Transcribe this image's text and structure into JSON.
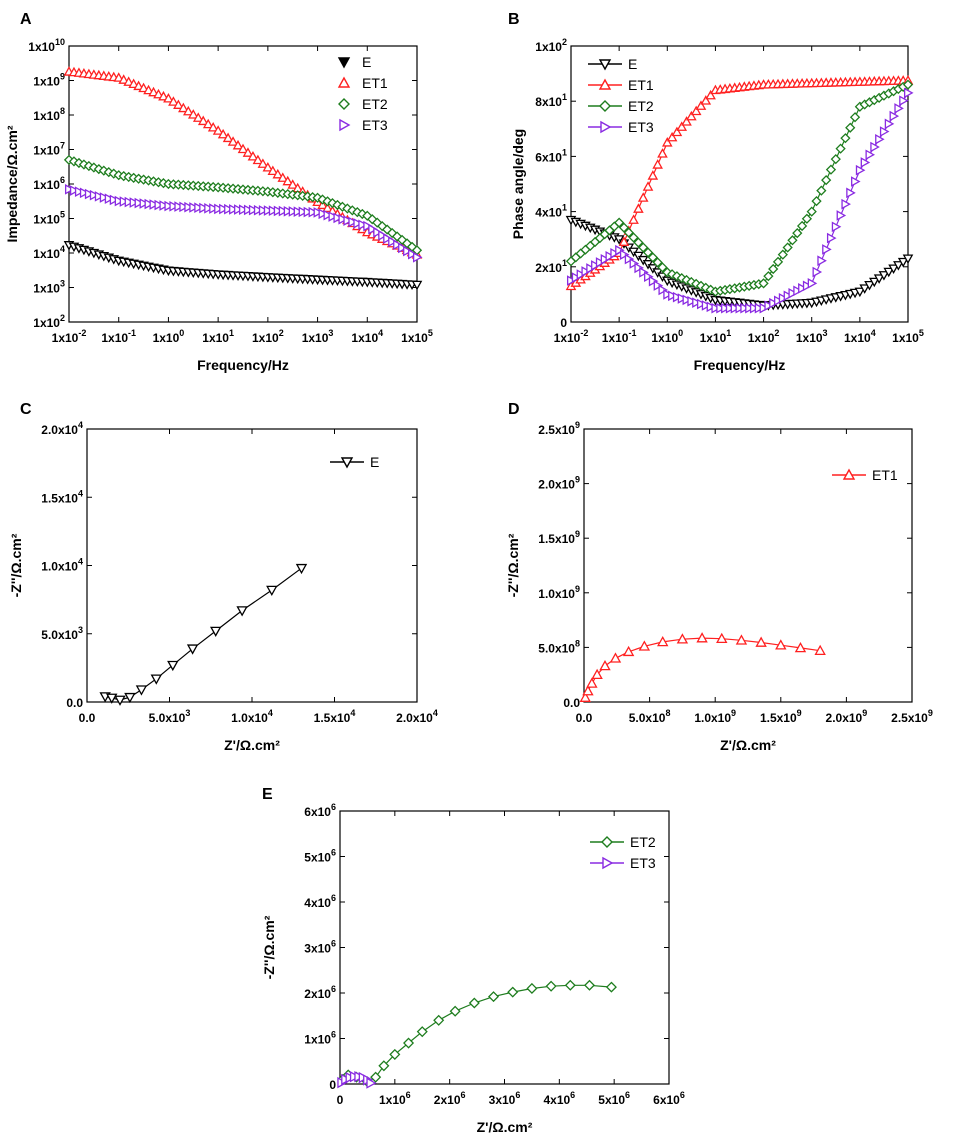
{
  "figure": {
    "colors": {
      "E": "#000000",
      "ET1": "#ff2020",
      "ET2": "#1e7d1e",
      "ET3": "#8a2be2"
    }
  },
  "chart_data": [
    {
      "id": "A",
      "panel_label": "A",
      "type": "scatter",
      "scale": "log-log",
      "xlabel": "Frequency/Hz",
      "ylabel": "Impedance/Ω.cm²",
      "xlim": [
        0.01,
        100000
      ],
      "ylim": [
        100,
        10000000000
      ],
      "xticks": [
        {
          "b": "1x10",
          "e": "-2"
        },
        {
          "b": "1x10",
          "e": "-1"
        },
        {
          "b": "1x10",
          "e": "0"
        },
        {
          "b": "1x10",
          "e": "1"
        },
        {
          "b": "1x10",
          "e": "2"
        },
        {
          "b": "1x10",
          "e": "3"
        },
        {
          "b": "1x10",
          "e": "4"
        },
        {
          "b": "1x10",
          "e": "5"
        }
      ],
      "yticks": [
        {
          "b": "1x10",
          "e": "2"
        },
        {
          "b": "1x10",
          "e": "3"
        },
        {
          "b": "1x10",
          "e": "4"
        },
        {
          "b": "1x10",
          "e": "5"
        },
        {
          "b": "1x10",
          "e": "6"
        },
        {
          "b": "1x10",
          "e": "7"
        },
        {
          "b": "1x10",
          "e": "8"
        },
        {
          "b": "1x10",
          "e": "9"
        },
        {
          "b": "1x10",
          "e": "10"
        }
      ],
      "legend": {
        "position": "top-right",
        "style": "marker-only"
      },
      "series": [
        {
          "name": "E",
          "marker": "triangle-down",
          "x": [
            0.01,
            0.1,
            1,
            10,
            100,
            1000,
            10000,
            100000
          ],
          "y": [
            17000,
            6000,
            3100,
            2400,
            2000,
            1700,
            1450,
            1200
          ]
        },
        {
          "name": "ET1",
          "marker": "triangle-up",
          "x": [
            0.01,
            0.1,
            1,
            10,
            100,
            1000,
            10000,
            100000
          ],
          "y": [
            1800000000,
            1200000000,
            300000000,
            35000000,
            3000000,
            300000,
            40000,
            9000
          ]
        },
        {
          "name": "ET2",
          "marker": "diamond",
          "x": [
            0.01,
            0.1,
            1,
            10,
            100,
            1000,
            10000,
            100000
          ],
          "y": [
            5000000,
            1800000,
            1000000,
            800000,
            600000,
            400000,
            120000,
            12000
          ]
        },
        {
          "name": "ET3",
          "marker": "triangle-right",
          "x": [
            0.01,
            0.1,
            1,
            10,
            100,
            1000,
            10000,
            100000
          ],
          "y": [
            700000,
            320000,
            230000,
            190000,
            170000,
            150000,
            60000,
            7500
          ]
        }
      ]
    },
    {
      "id": "B",
      "panel_label": "B",
      "type": "scatter",
      "scale": "log-x",
      "xlabel": "Frequency/Hz",
      "ylabel": "Phase angle/deg",
      "xlim": [
        0.01,
        100000
      ],
      "ylim": [
        0,
        100
      ],
      "xticks": [
        {
          "b": "1x10",
          "e": "-2"
        },
        {
          "b": "1x10",
          "e": "-1"
        },
        {
          "b": "1x10",
          "e": "0"
        },
        {
          "b": "1x10",
          "e": "1"
        },
        {
          "b": "1x10",
          "e": "2"
        },
        {
          "b": "1x10",
          "e": "3"
        },
        {
          "b": "1x10",
          "e": "4"
        },
        {
          "b": "1x10",
          "e": "5"
        }
      ],
      "yticks": [
        {
          "v": 0,
          "b": "0",
          "e": ""
        },
        {
          "v": 20,
          "b": "2x10",
          "e": "1"
        },
        {
          "v": 40,
          "b": "4x10",
          "e": "1"
        },
        {
          "v": 60,
          "b": "6x10",
          "e": "1"
        },
        {
          "v": 80,
          "b": "8x10",
          "e": "1"
        },
        {
          "v": 100,
          "b": "1x10",
          "e": "2"
        }
      ],
      "legend": {
        "position": "top-left",
        "style": "line-marker"
      },
      "series": [
        {
          "name": "E",
          "marker": "triangle-down",
          "x": [
            0.01,
            0.1,
            1,
            10,
            100,
            1000,
            10000,
            100000
          ],
          "y": [
            37,
            30,
            15,
            8,
            6,
            7,
            11,
            23
          ]
        },
        {
          "name": "ET1",
          "marker": "triangle-up",
          "x": [
            0.01,
            0.1,
            1,
            10,
            100,
            1000,
            10000,
            100000
          ],
          "y": [
            13,
            25,
            65,
            84,
            86,
            86.5,
            87,
            87.5
          ]
        },
        {
          "name": "ET2",
          "marker": "diamond",
          "x": [
            0.01,
            0.1,
            1,
            10,
            100,
            1000,
            10000,
            100000
          ],
          "y": [
            22,
            36,
            18,
            11,
            14,
            40,
            78,
            86
          ]
        },
        {
          "name": "ET3",
          "marker": "triangle-right",
          "x": [
            0.01,
            0.1,
            1,
            10,
            100,
            1000,
            10000,
            100000
          ],
          "y": [
            15,
            26,
            10,
            5,
            5,
            14,
            55,
            83
          ]
        }
      ]
    },
    {
      "id": "C",
      "panel_label": "C",
      "type": "scatter",
      "scale": "linear",
      "xlabel": "Z'/Ω.cm²",
      "ylabel": "-Z''/Ω.cm²",
      "xlim": [
        0,
        20000
      ],
      "ylim": [
        0,
        20000
      ],
      "xticks": [
        {
          "v": 0,
          "b": "0.0",
          "e": ""
        },
        {
          "v": 5000,
          "b": "5.0x10",
          "e": "3"
        },
        {
          "v": 10000,
          "b": "1.0x10",
          "e": "4"
        },
        {
          "v": 15000,
          "b": "1.5x10",
          "e": "4"
        },
        {
          "v": 20000,
          "b": "2.0x10",
          "e": "4"
        }
      ],
      "yticks": [
        {
          "v": 0,
          "b": "0.0",
          "e": ""
        },
        {
          "v": 5000,
          "b": "5.0x10",
          "e": "3"
        },
        {
          "v": 10000,
          "b": "1.0x10",
          "e": "4"
        },
        {
          "v": 15000,
          "b": "1.5x10",
          "e": "4"
        },
        {
          "v": 20000,
          "b": "2.0x10",
          "e": "4"
        }
      ],
      "legend": {
        "position": "top-right",
        "style": "line-marker"
      },
      "series": [
        {
          "name": "E",
          "marker": "triangle-down",
          "x": [
            1100,
            1500,
            2000,
            2600,
            3300,
            4200,
            5200,
            6400,
            7800,
            9400,
            11200,
            13000
          ],
          "y": [
            400,
            300,
            150,
            350,
            900,
            1700,
            2700,
            3900,
            5200,
            6700,
            8200,
            9800
          ]
        }
      ]
    },
    {
      "id": "D",
      "panel_label": "D",
      "type": "scatter",
      "scale": "linear",
      "xlabel": "Z'/Ω.cm²",
      "ylabel": "-Z''/Ω.cm²",
      "xlim": [
        0,
        2500000000
      ],
      "ylim": [
        0,
        2500000000
      ],
      "xticks": [
        {
          "v": 0,
          "b": "0.0",
          "e": ""
        },
        {
          "v": 500000000,
          "b": "5.0x10",
          "e": "8"
        },
        {
          "v": 1000000000,
          "b": "1.0x10",
          "e": "9"
        },
        {
          "v": 1500000000,
          "b": "1.5x10",
          "e": "9"
        },
        {
          "v": 2000000000,
          "b": "2.0x10",
          "e": "9"
        },
        {
          "v": 2500000000,
          "b": "2.5x10",
          "e": "9"
        }
      ],
      "yticks": [
        {
          "v": 0,
          "b": "0.0",
          "e": ""
        },
        {
          "v": 500000000,
          "b": "5.0x10",
          "e": "8"
        },
        {
          "v": 1000000000,
          "b": "1.0x10",
          "e": "9"
        },
        {
          "v": 1500000000,
          "b": "1.5x10",
          "e": "9"
        },
        {
          "v": 2000000000,
          "b": "2.0x10",
          "e": "9"
        },
        {
          "v": 2500000000,
          "b": "2.5x10",
          "e": "9"
        }
      ],
      "legend": {
        "position": "top-right",
        "style": "line-marker"
      },
      "series": [
        {
          "name": "ET1",
          "marker": "triangle-up",
          "x": [
            10000000,
            30000000,
            60000000,
            100000000,
            160000000,
            240000000,
            340000000,
            460000000,
            600000000,
            750000000,
            900000000,
            1050000000,
            1200000000,
            1350000000,
            1500000000,
            1650000000,
            1800000000
          ],
          "y": [
            40000000,
            100000000,
            170000000,
            250000000,
            330000000,
            400000000,
            460000000,
            510000000,
            550000000,
            575000000,
            585000000,
            580000000,
            565000000,
            545000000,
            520000000,
            495000000,
            470000000
          ]
        }
      ]
    },
    {
      "id": "E",
      "panel_label": "E",
      "type": "scatter",
      "scale": "linear",
      "xlabel": "Z'/Ω.cm²",
      "ylabel": "-Z''/Ω.cm²",
      "xlim": [
        0,
        6000000
      ],
      "ylim": [
        0,
        6000000
      ],
      "xticks": [
        {
          "v": 0,
          "b": "0",
          "e": ""
        },
        {
          "v": 1000000,
          "b": "1x10",
          "e": "6"
        },
        {
          "v": 2000000,
          "b": "2x10",
          "e": "6"
        },
        {
          "v": 3000000,
          "b": "3x10",
          "e": "6"
        },
        {
          "v": 4000000,
          "b": "4x10",
          "e": "6"
        },
        {
          "v": 5000000,
          "b": "5x10",
          "e": "6"
        },
        {
          "v": 6000000,
          "b": "6x10",
          "e": "6"
        }
      ],
      "yticks": [
        {
          "v": 0,
          "b": "0",
          "e": ""
        },
        {
          "v": 1000000,
          "b": "1x10",
          "e": "6"
        },
        {
          "v": 2000000,
          "b": "2x10",
          "e": "6"
        },
        {
          "v": 3000000,
          "b": "3x10",
          "e": "6"
        },
        {
          "v": 4000000,
          "b": "4x10",
          "e": "6"
        },
        {
          "v": 5000000,
          "b": "5x10",
          "e": "6"
        },
        {
          "v": 6000000,
          "b": "6x10",
          "e": "6"
        }
      ],
      "legend": {
        "position": "top-right",
        "style": "line-marker"
      },
      "series": [
        {
          "name": "ET2",
          "marker": "diamond",
          "x": [
            50000,
            150000,
            300000,
            500000,
            650000,
            800000,
            1000000,
            1250000,
            1500000,
            1800000,
            2100000,
            2450000,
            2800000,
            3150000,
            3500000,
            3850000,
            4200000,
            4550000,
            4950000
          ],
          "y": [
            100000,
            200000,
            150000,
            50000,
            150000,
            400000,
            650000,
            900000,
            1150000,
            1400000,
            1600000,
            1780000,
            1920000,
            2020000,
            2100000,
            2150000,
            2170000,
            2170000,
            2130000
          ]
        },
        {
          "name": "ET3",
          "marker": "triangle-right",
          "x": [
            30000,
            100000,
            180000,
            260000,
            340000,
            420000,
            500000,
            560000
          ],
          "y": [
            30000,
            100000,
            140000,
            160000,
            160000,
            140000,
            90000,
            20000
          ]
        }
      ]
    }
  ]
}
